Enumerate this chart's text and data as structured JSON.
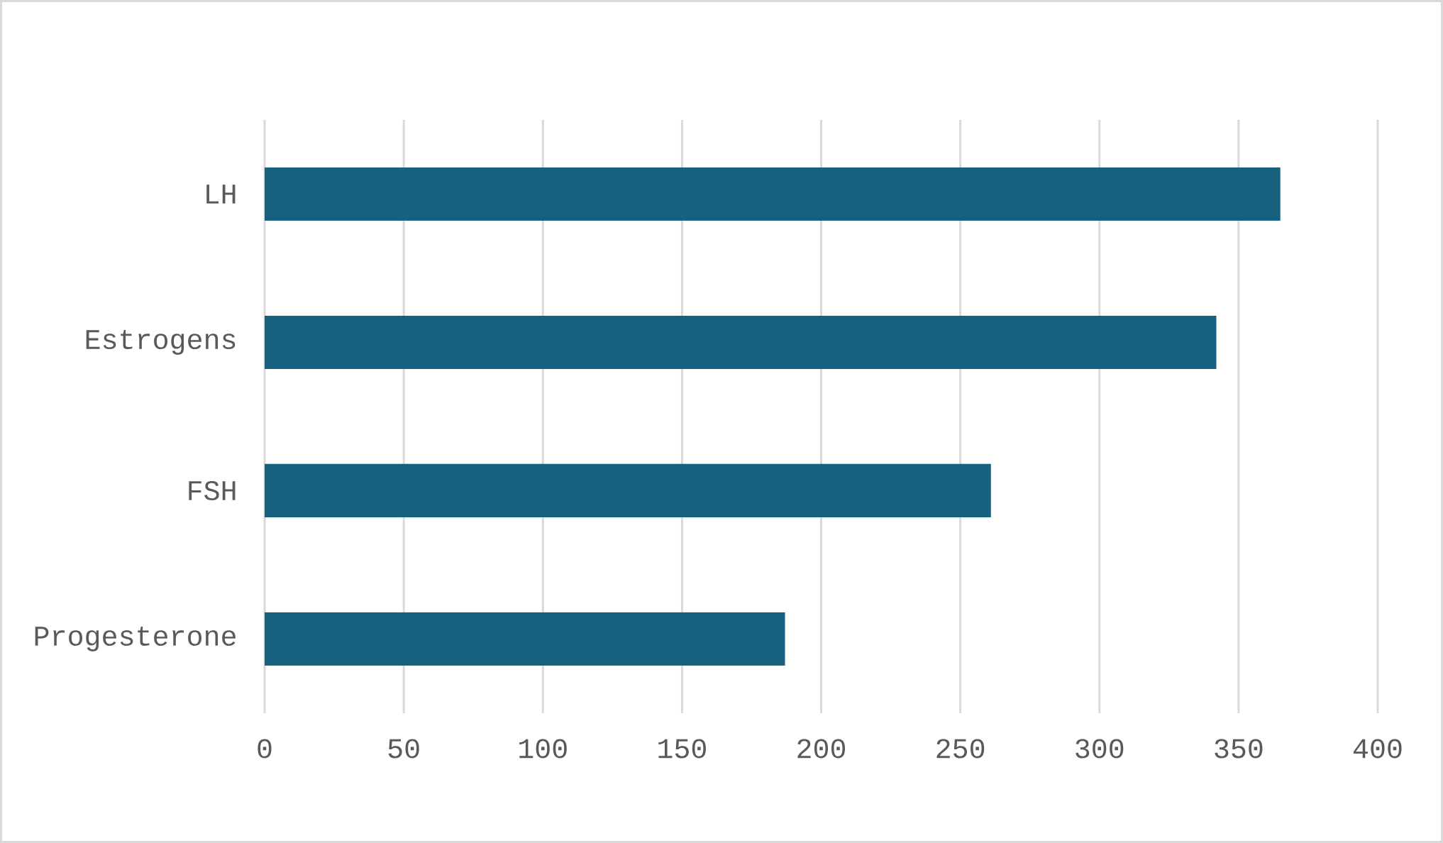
{
  "chart_data": {
    "type": "bar",
    "orientation": "horizontal",
    "categories": [
      "LH",
      "Estrogens",
      "FSH",
      "Progesterone"
    ],
    "values": [
      365,
      342,
      261,
      187
    ],
    "color": "#17607f",
    "xlim": [
      0,
      400
    ],
    "xticks": [
      0,
      50,
      100,
      150,
      200,
      250,
      300,
      350,
      400
    ],
    "grid": "x"
  }
}
